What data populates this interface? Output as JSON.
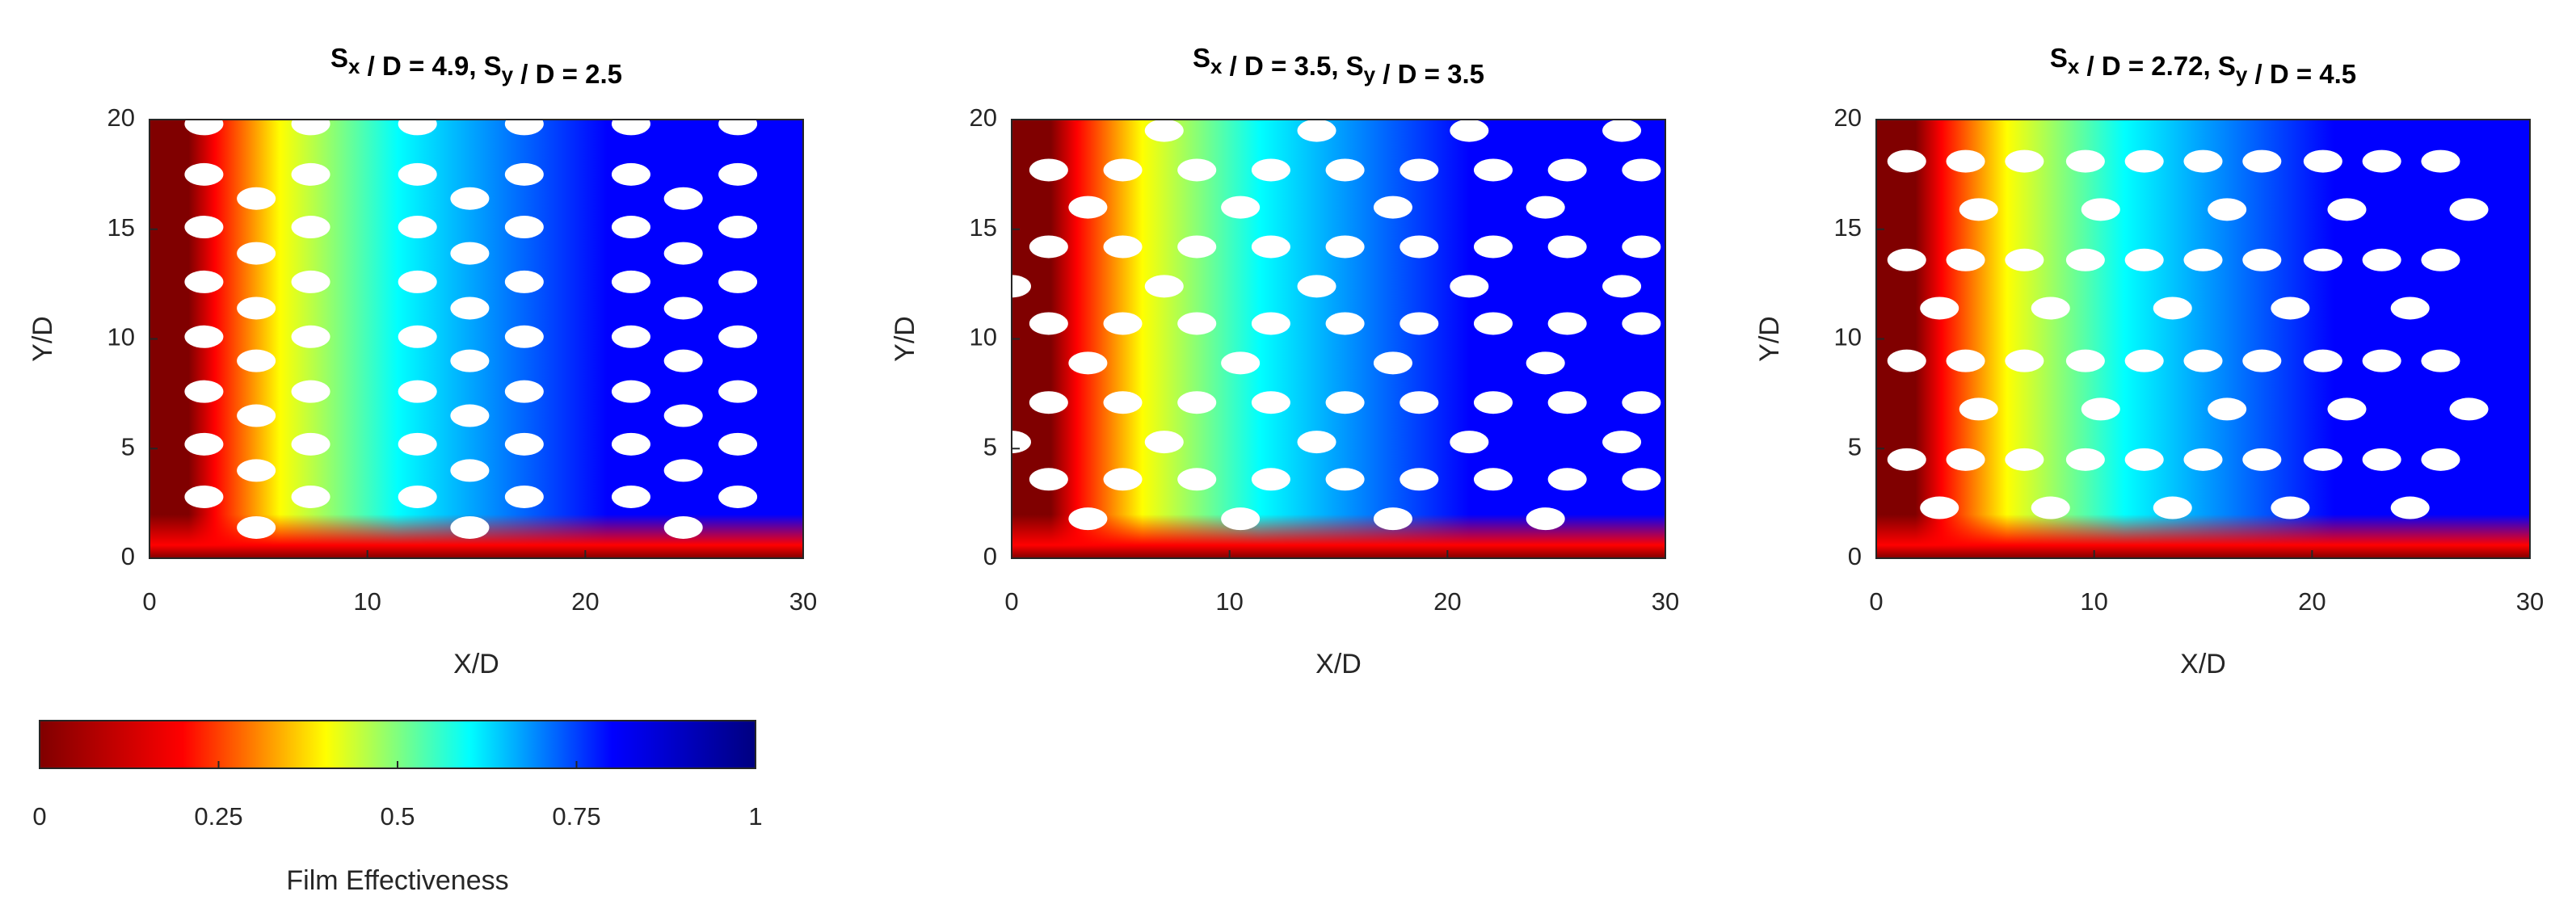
{
  "chart_data": [
    {
      "type": "heatmap",
      "title": "Sx / D = 4.9, Sy / D = 2.5",
      "xlabel": "X/D",
      "ylabel": "Y/D",
      "xlim": [
        0,
        30
      ],
      "ylim": [
        0,
        20
      ],
      "xticks": [
        0,
        10,
        20,
        30
      ],
      "yticks": [
        0,
        5,
        10,
        15,
        20
      ],
      "hole_rows": [
        {
          "y": 1.4,
          "x": [
            4.9,
            14.7,
            24.5
          ]
        },
        {
          "y": 2.8,
          "x": [
            2.5,
            7.4,
            12.3,
            17.2,
            22.1,
            27
          ]
        },
        {
          "y": 4,
          "x": [
            4.9,
            14.7,
            24.5
          ]
        },
        {
          "y": 5.2,
          "x": [
            2.5,
            7.4,
            12.3,
            17.2,
            22.1,
            27
          ]
        },
        {
          "y": 6.5,
          "x": [
            4.9,
            14.7,
            24.5
          ]
        },
        {
          "y": 7.6,
          "x": [
            2.5,
            7.4,
            12.3,
            17.2,
            22.1,
            27
          ]
        },
        {
          "y": 9,
          "x": [
            4.9,
            14.7,
            24.5
          ]
        },
        {
          "y": 10.1,
          "x": [
            2.5,
            7.4,
            12.3,
            17.2,
            22.1,
            27
          ]
        },
        {
          "y": 11.4,
          "x": [
            4.9,
            14.7,
            24.5
          ]
        },
        {
          "y": 12.6,
          "x": [
            2.5,
            7.4,
            12.3,
            17.2,
            22.1,
            27
          ]
        },
        {
          "y": 13.9,
          "x": [
            4.9,
            14.7,
            24.5
          ]
        },
        {
          "y": 15.1,
          "x": [
            2.5,
            7.4,
            12.3,
            17.2,
            22.1,
            27
          ]
        },
        {
          "y": 16.4,
          "x": [
            4.9,
            14.7,
            24.5
          ]
        },
        {
          "y": 17.5,
          "x": [
            2.5,
            7.4,
            12.3,
            17.2,
            22.1,
            27
          ]
        },
        {
          "y": 19.8,
          "x": [
            2.5,
            7.4,
            12.3,
            17.2,
            22.1,
            27
          ]
        }
      ]
    },
    {
      "type": "heatmap",
      "title": "Sx / D = 3.5, Sy / D = 3.5",
      "xlabel": "X/D",
      "ylabel": "Y/D",
      "xlim": [
        0,
        30
      ],
      "ylim": [
        0,
        20
      ],
      "xticks": [
        0,
        10,
        20,
        30
      ],
      "yticks": [
        0,
        5,
        10,
        15,
        20
      ],
      "hole_rows": [
        {
          "y": 1.8,
          "x": [
            3.5,
            10.5,
            17.5,
            24.5
          ]
        },
        {
          "y": 3.6,
          "x": [
            1.7,
            5.1,
            8.5,
            11.9,
            15.3,
            18.7,
            22.1,
            25.5,
            28.9
          ]
        },
        {
          "y": 5.3,
          "x": [
            0,
            7,
            14,
            21,
            28
          ]
        },
        {
          "y": 7.1,
          "x": [
            1.7,
            5.1,
            8.5,
            11.9,
            15.3,
            18.7,
            22.1,
            25.5,
            28.9
          ]
        },
        {
          "y": 8.9,
          "x": [
            3.5,
            10.5,
            17.5,
            24.5
          ]
        },
        {
          "y": 10.7,
          "x": [
            1.7,
            5.1,
            8.5,
            11.9,
            15.3,
            18.7,
            22.1,
            25.5,
            28.9
          ]
        },
        {
          "y": 12.4,
          "x": [
            0,
            7,
            14,
            21,
            28
          ]
        },
        {
          "y": 14.2,
          "x": [
            1.7,
            5.1,
            8.5,
            11.9,
            15.3,
            18.7,
            22.1,
            25.5,
            28.9
          ]
        },
        {
          "y": 16,
          "x": [
            3.5,
            10.5,
            17.5,
            24.5
          ]
        },
        {
          "y": 17.7,
          "x": [
            1.7,
            5.1,
            8.5,
            11.9,
            15.3,
            18.7,
            22.1,
            25.5,
            28.9
          ]
        },
        {
          "y": 19.5,
          "x": [
            7,
            14,
            21,
            28
          ]
        }
      ]
    },
    {
      "type": "heatmap",
      "title": "Sx / D = 2.72, Sy / D = 4.5",
      "xlabel": "X/D",
      "ylabel": "Y/D",
      "xlim": [
        0,
        30
      ],
      "ylim": [
        0,
        20
      ],
      "xticks": [
        0,
        10,
        20,
        30
      ],
      "yticks": [
        0,
        5,
        10,
        15,
        20
      ],
      "hole_rows": [
        {
          "y": 2.3,
          "x": [
            2.9,
            8,
            13.6,
            19,
            24.5
          ]
        },
        {
          "y": 4.5,
          "x": [
            1.4,
            4.1,
            6.8,
            9.6,
            12.3,
            15,
            17.7,
            20.5,
            23.2,
            25.9
          ]
        },
        {
          "y": 6.8,
          "x": [
            4.7,
            10.3,
            16.1,
            21.6,
            27.2
          ]
        },
        {
          "y": 9,
          "x": [
            1.4,
            4.1,
            6.8,
            9.6,
            12.3,
            15,
            17.7,
            20.5,
            23.2,
            25.9
          ]
        },
        {
          "y": 11.4,
          "x": [
            2.9,
            8,
            13.6,
            19,
            24.5
          ]
        },
        {
          "y": 13.6,
          "x": [
            1.4,
            4.1,
            6.8,
            9.6,
            12.3,
            15,
            17.7,
            20.5,
            23.2,
            25.9
          ]
        },
        {
          "y": 15.9,
          "x": [
            4.7,
            10.3,
            16.1,
            21.6,
            27.2
          ]
        },
        {
          "y": 18.1,
          "x": [
            1.4,
            4.1,
            6.8,
            9.6,
            12.3,
            15,
            17.7,
            20.5,
            23.2,
            25.9
          ]
        }
      ]
    }
  ],
  "colorbar": {
    "label": "Film Effectiveness",
    "clim": [
      0,
      1
    ],
    "ticks": [
      0,
      0.25,
      0.5,
      0.75,
      1
    ],
    "colormap": [
      "#800000",
      "#ff0000",
      "#ffff00",
      "#00ffff",
      "#0000ff",
      "#000080"
    ]
  }
}
